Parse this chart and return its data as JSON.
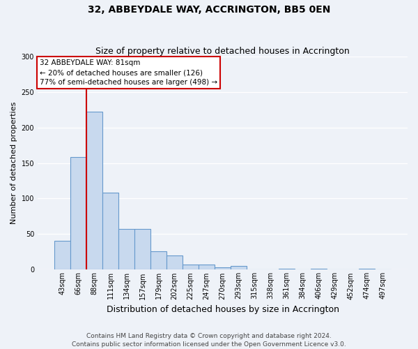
{
  "title": "32, ABBEYDALE WAY, ACCRINGTON, BB5 0EN",
  "subtitle": "Size of property relative to detached houses in Accrington",
  "xlabel": "Distribution of detached houses by size in Accrington",
  "ylabel": "Number of detached properties",
  "bar_labels": [
    "43sqm",
    "66sqm",
    "88sqm",
    "111sqm",
    "134sqm",
    "157sqm",
    "179sqm",
    "202sqm",
    "225sqm",
    "247sqm",
    "270sqm",
    "293sqm",
    "315sqm",
    "338sqm",
    "361sqm",
    "384sqm",
    "406sqm",
    "429sqm",
    "452sqm",
    "474sqm",
    "497sqm"
  ],
  "bar_heights": [
    41,
    158,
    222,
    108,
    57,
    57,
    26,
    20,
    7,
    7,
    3,
    5,
    0,
    0,
    1,
    0,
    1,
    0,
    0,
    1,
    0
  ],
  "bar_color": "#c8d9ee",
  "bar_edge_color": "#6699cc",
  "ylim": [
    0,
    300
  ],
  "yticks": [
    0,
    50,
    100,
    150,
    200,
    250,
    300
  ],
  "vline_x_index": 2,
  "vline_color": "#cc0000",
  "annotation_title": "32 ABBEYDALE WAY: 81sqm",
  "annotation_line1": "← 20% of detached houses are smaller (126)",
  "annotation_line2": "77% of semi-detached houses are larger (498) →",
  "annotation_box_edgecolor": "#cc0000",
  "footer_line1": "Contains HM Land Registry data © Crown copyright and database right 2024.",
  "footer_line2": "Contains public sector information licensed under the Open Government Licence v3.0.",
  "background_color": "#eef2f8",
  "grid_color": "#ffffff",
  "title_fontsize": 10,
  "subtitle_fontsize": 9,
  "ylabel_fontsize": 8,
  "xlabel_fontsize": 9,
  "tick_fontsize": 7,
  "footer_fontsize": 6.5
}
